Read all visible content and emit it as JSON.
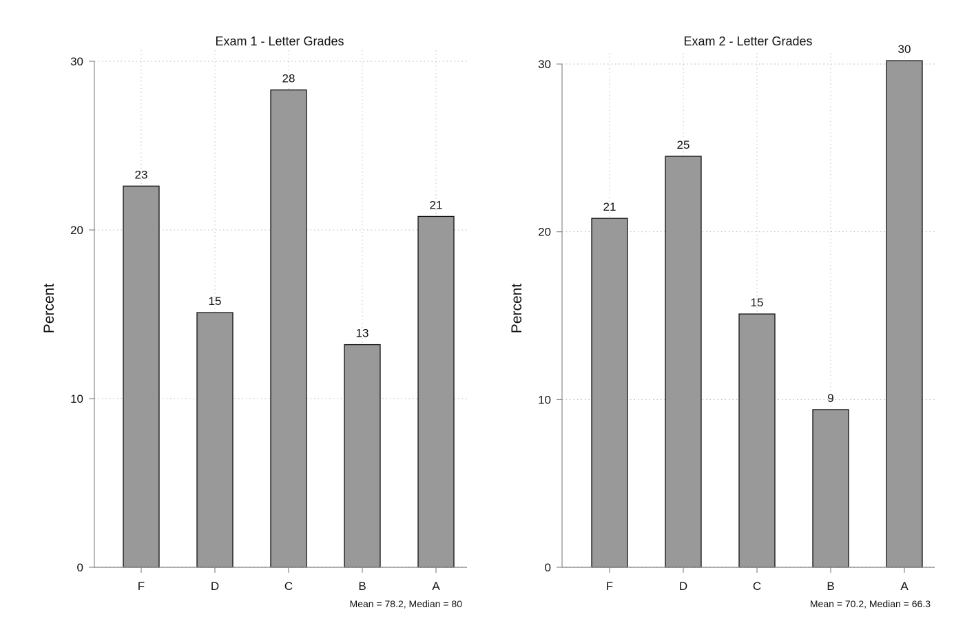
{
  "chart_data": [
    {
      "type": "bar",
      "title": "Exam 1 - Letter Grades",
      "xlabel": "",
      "ylabel": "Percent",
      "categories": [
        "F",
        "D",
        "C",
        "B",
        "A"
      ],
      "values": [
        22.6,
        15.1,
        28.3,
        13.2,
        20.8
      ],
      "value_labels": [
        "23",
        "15",
        "28",
        "13",
        "21"
      ],
      "ylim": [
        0,
        30
      ],
      "yticks": [
        0,
        10,
        20,
        30
      ],
      "grid": true,
      "note": "Mean = 78.2, Median = 80",
      "bar_color": "#999999"
    },
    {
      "type": "bar",
      "title": "Exam 2 - Letter Grades",
      "xlabel": "",
      "ylabel": "Percent",
      "categories": [
        "F",
        "D",
        "C",
        "B",
        "A"
      ],
      "values": [
        20.8,
        24.5,
        15.1,
        9.4,
        30.2
      ],
      "value_labels": [
        "21",
        "25",
        "15",
        "9",
        "30"
      ],
      "ylim": [
        0,
        30
      ],
      "yticks": [
        0,
        10,
        20,
        30
      ],
      "grid": true,
      "note": "Mean = 70.2, Median = 66.3",
      "bar_color": "#999999"
    }
  ]
}
